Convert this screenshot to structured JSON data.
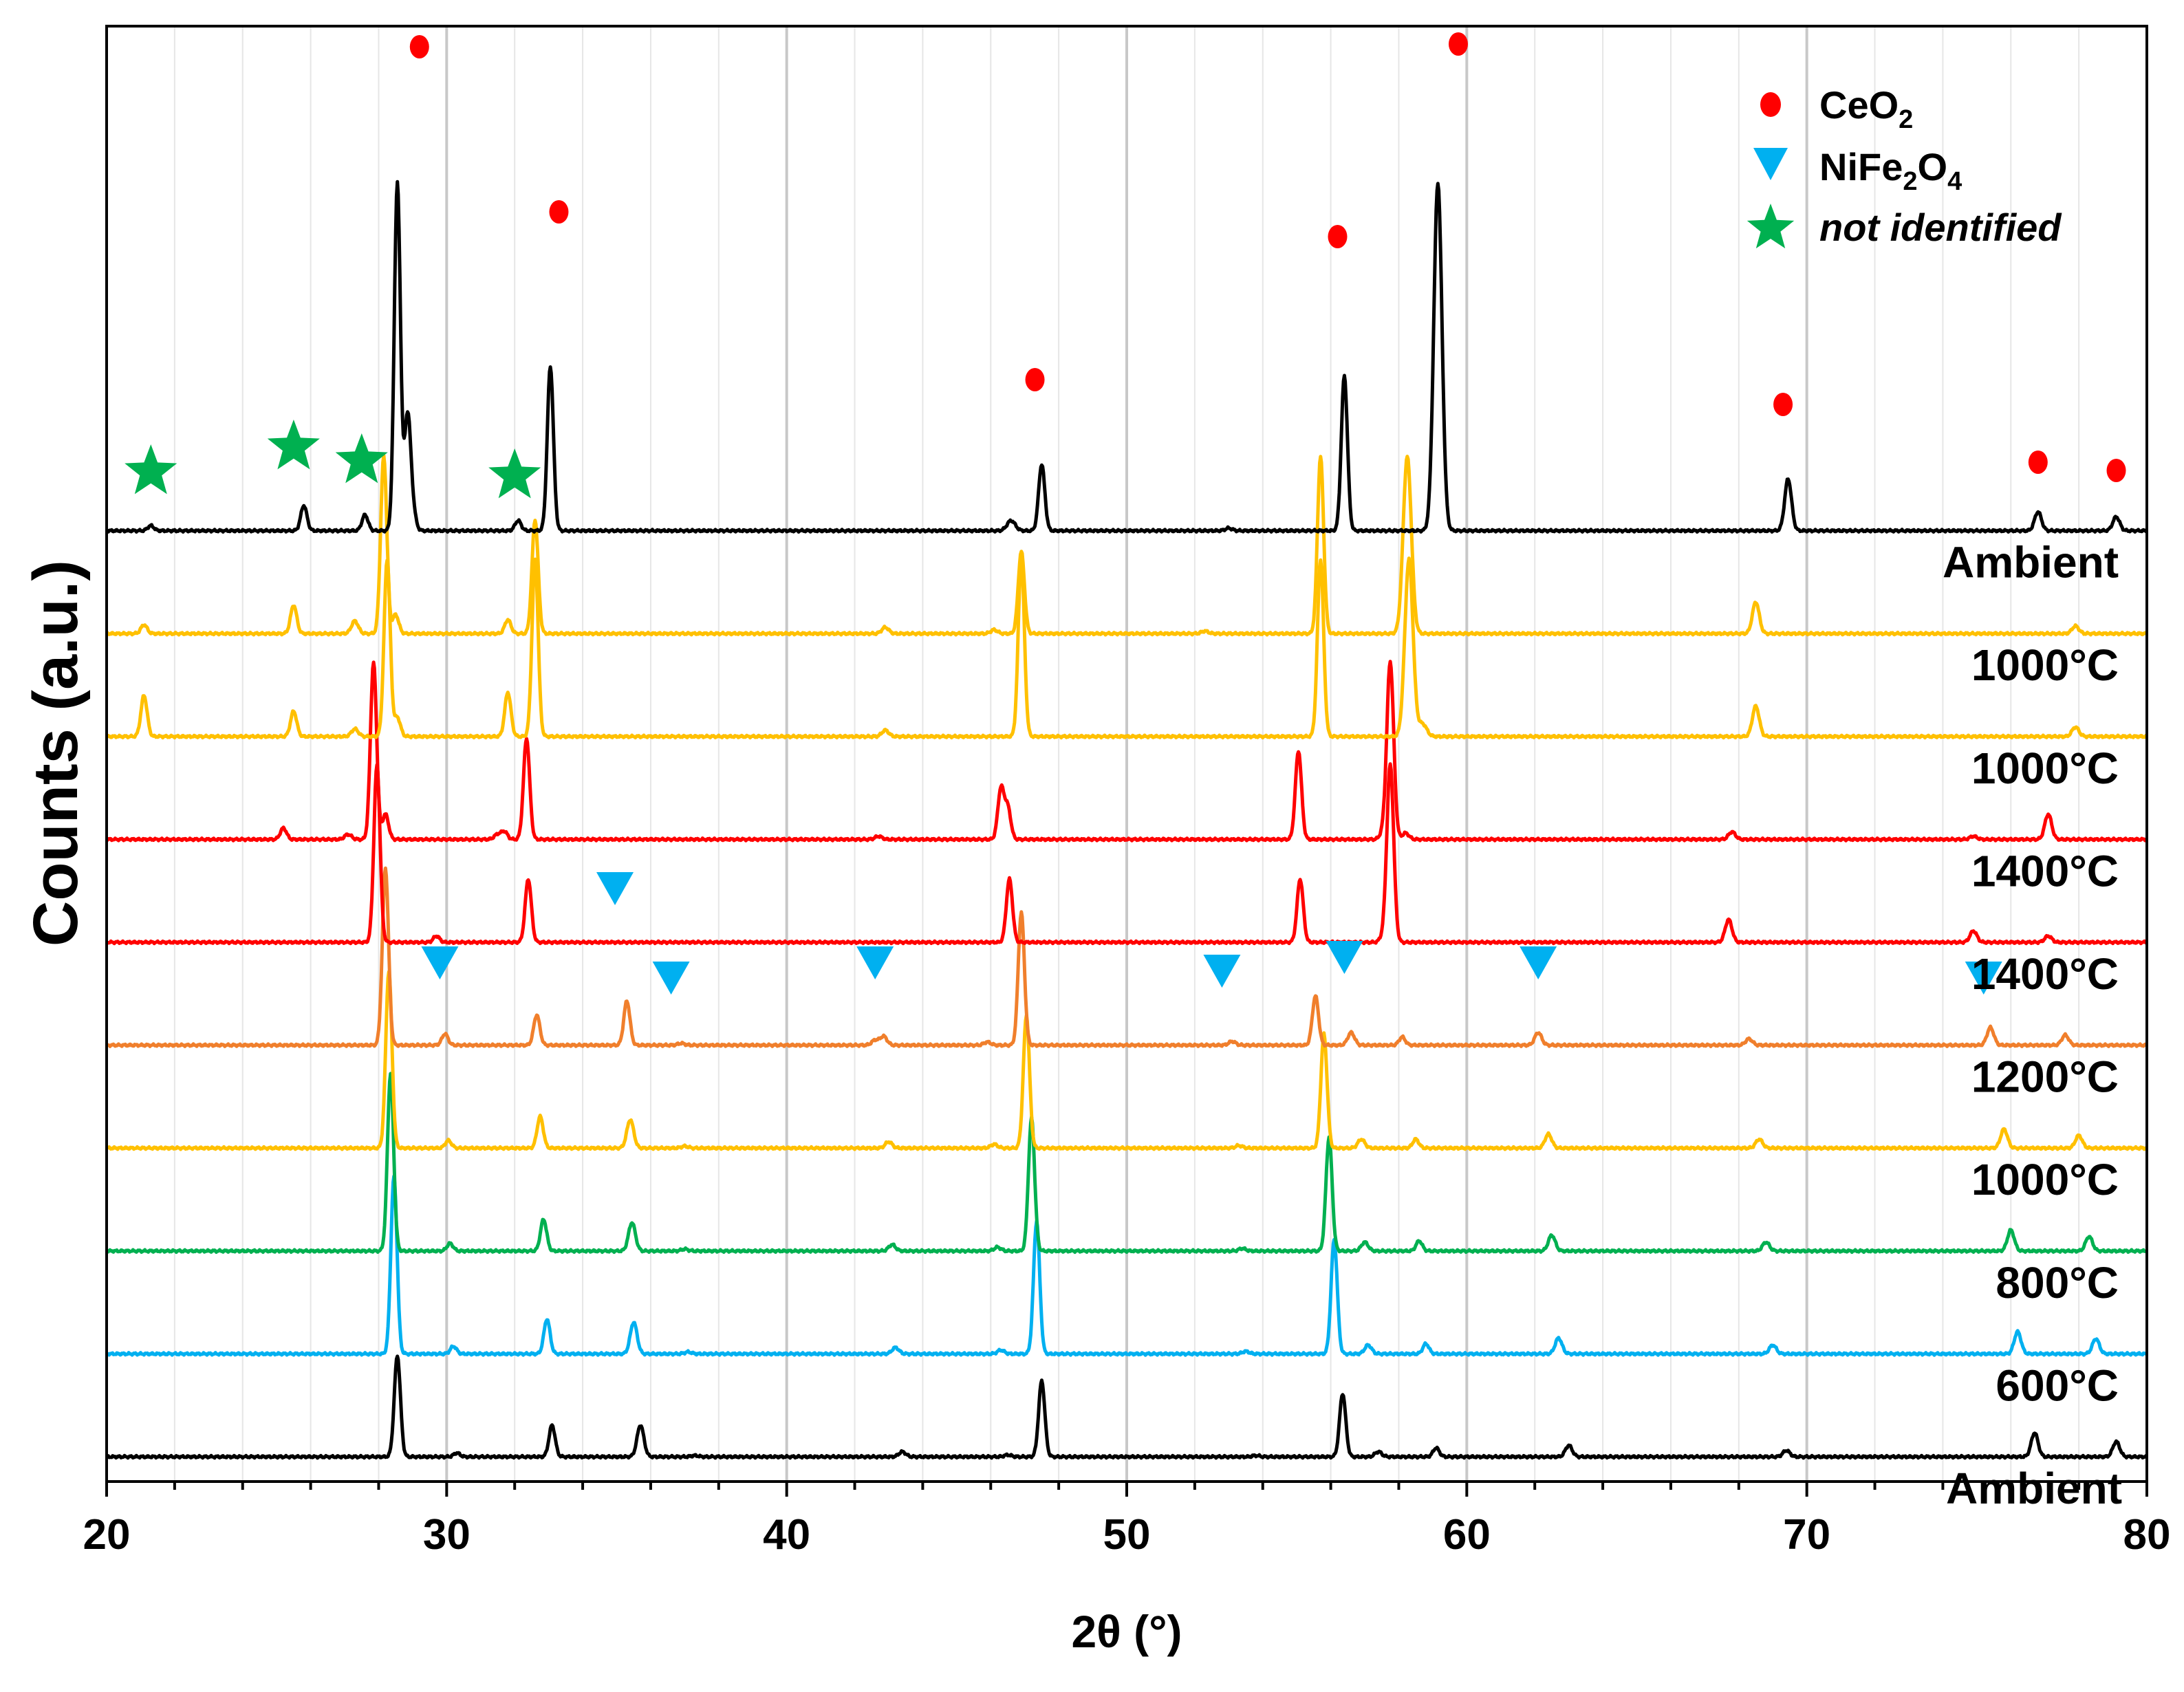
{
  "chart_data": {
    "type": "line",
    "title": "",
    "xlabel": "2θ (°)",
    "ylabel": "Counts (a.u.)",
    "xlim": [
      20,
      80
    ],
    "xticks": [
      20,
      30,
      40,
      50,
      60,
      70,
      80
    ],
    "grid": "vertical",
    "legend": {
      "position": "top-right",
      "entries": [
        {
          "marker": "circle",
          "color": "#ff0000",
          "label": "CeO",
          "sub": "2"
        },
        {
          "marker": "triangle-down",
          "color": "#00b0f0",
          "label_parts": [
            "NiFe",
            "2",
            "O",
            "4"
          ]
        },
        {
          "marker": "star",
          "color": "#00b050",
          "label": "not identified",
          "italic": true
        }
      ]
    },
    "series": [
      {
        "name": "Ambient",
        "color": "#000000",
        "base": 0.0,
        "peaks": [
          [
            28.55,
            1.6,
            0.09
          ],
          [
            30.3,
            0.06,
            0.09
          ],
          [
            33.1,
            0.5,
            0.09
          ],
          [
            35.7,
            0.5,
            0.1
          ],
          [
            37.3,
            0.02,
            0.1
          ],
          [
            43.4,
            0.08,
            0.1
          ],
          [
            46.5,
            0.03,
            0.1
          ],
          [
            47.5,
            1.2,
            0.09
          ],
          [
            53.8,
            0.02,
            0.1
          ],
          [
            56.35,
            1.0,
            0.09
          ],
          [
            57.4,
            0.08,
            0.1
          ],
          [
            59.1,
            0.14,
            0.09
          ],
          [
            63.0,
            0.18,
            0.1
          ],
          [
            69.4,
            0.1,
            0.1
          ],
          [
            76.7,
            0.38,
            0.1
          ],
          [
            79.1,
            0.24,
            0.1
          ]
        ]
      },
      {
        "name": "600°C",
        "color": "#00b0f0",
        "base": 1.0,
        "peaks": [
          [
            28.45,
            2.8,
            0.09
          ],
          [
            30.2,
            0.12,
            0.09
          ],
          [
            32.95,
            0.55,
            0.09
          ],
          [
            35.5,
            0.5,
            0.1
          ],
          [
            37.1,
            0.03,
            0.1
          ],
          [
            43.2,
            0.1,
            0.1
          ],
          [
            46.3,
            0.06,
            0.1
          ],
          [
            47.35,
            2.1,
            0.09
          ],
          [
            53.5,
            0.04,
            0.1
          ],
          [
            56.1,
            1.8,
            0.09
          ],
          [
            57.1,
            0.14,
            0.1
          ],
          [
            58.8,
            0.16,
            0.09
          ],
          [
            62.7,
            0.25,
            0.1
          ],
          [
            69.0,
            0.14,
            0.1
          ],
          [
            76.2,
            0.35,
            0.1
          ],
          [
            78.5,
            0.24,
            0.1
          ]
        ]
      },
      {
        "name": "800°C",
        "color": "#00b050",
        "base": 2.0,
        "peaks": [
          [
            28.35,
            2.8,
            0.09
          ],
          [
            30.1,
            0.12,
            0.09
          ],
          [
            32.85,
            0.5,
            0.09
          ],
          [
            35.45,
            0.45,
            0.1
          ],
          [
            37.0,
            0.03,
            0.1
          ],
          [
            43.1,
            0.1,
            0.1
          ],
          [
            46.2,
            0.06,
            0.1
          ],
          [
            47.2,
            2.1,
            0.09
          ],
          [
            53.4,
            0.04,
            0.1
          ],
          [
            55.95,
            1.8,
            0.09
          ],
          [
            57.0,
            0.14,
            0.1
          ],
          [
            58.6,
            0.16,
            0.09
          ],
          [
            62.5,
            0.25,
            0.1
          ],
          [
            68.8,
            0.14,
            0.1
          ],
          [
            76.0,
            0.33,
            0.1
          ],
          [
            78.3,
            0.23,
            0.1
          ]
        ]
      },
      {
        "name": "1000°C",
        "color": "#ffc000",
        "base": 3.0,
        "peaks": [
          [
            28.3,
            2.8,
            0.09
          ],
          [
            30.05,
            0.12,
            0.09
          ],
          [
            32.75,
            0.5,
            0.09
          ],
          [
            35.4,
            0.45,
            0.1
          ],
          [
            37.0,
            0.03,
            0.1
          ],
          [
            43.0,
            0.1,
            0.1
          ],
          [
            46.1,
            0.06,
            0.1
          ],
          [
            47.05,
            2.1,
            0.09
          ],
          [
            53.3,
            0.04,
            0.1
          ],
          [
            55.8,
            1.8,
            0.09
          ],
          [
            56.9,
            0.14,
            0.1
          ],
          [
            58.5,
            0.14,
            0.09
          ],
          [
            62.4,
            0.22,
            0.1
          ],
          [
            68.6,
            0.14,
            0.1
          ],
          [
            75.8,
            0.3,
            0.1
          ],
          [
            78.0,
            0.2,
            0.1
          ]
        ]
      },
      {
        "name": "1200°C",
        "color": "#f07f2c",
        "base": 4.0,
        "peaks": [
          [
            28.2,
            2.8,
            0.09
          ],
          [
            29.95,
            0.18,
            0.09
          ],
          [
            32.65,
            0.48,
            0.09
          ],
          [
            35.3,
            0.7,
            0.09
          ],
          [
            36.9,
            0.03,
            0.1
          ],
          [
            42.6,
            0.08,
            0.1
          ],
          [
            42.85,
            0.14,
            0.1
          ],
          [
            45.9,
            0.05,
            0.1
          ],
          [
            46.9,
            2.1,
            0.09
          ],
          [
            53.1,
            0.06,
            0.1
          ],
          [
            55.55,
            0.78,
            0.09
          ],
          [
            56.6,
            0.2,
            0.1
          ],
          [
            58.1,
            0.13,
            0.09
          ],
          [
            62.1,
            0.2,
            0.1
          ],
          [
            68.3,
            0.1,
            0.1
          ],
          [
            75.4,
            0.28,
            0.1
          ],
          [
            77.6,
            0.16,
            0.1
          ]
        ]
      },
      {
        "name": "1400°C",
        "color": "#ff0000",
        "base": 5.0,
        "peaks": [
          [
            27.95,
            2.8,
            0.09
          ],
          [
            29.7,
            0.1,
            0.09
          ],
          [
            32.4,
            1.0,
            0.09
          ],
          [
            46.55,
            1.0,
            0.09
          ],
          [
            55.1,
            1.0,
            0.09
          ],
          [
            57.55,
            0.08,
            0.1
          ],
          [
            57.75,
            2.8,
            0.1
          ],
          [
            67.7,
            0.36,
            0.1
          ],
          [
            74.9,
            0.18,
            0.1
          ],
          [
            77.1,
            0.1,
            0.1
          ]
        ]
      },
      {
        "name": "1400°C",
        "color": "#ff0000",
        "base": 6.0,
        "peaks": [
          [
            25.2,
            0.18,
            0.09
          ],
          [
            27.1,
            0.08,
            0.1
          ],
          [
            27.85,
            2.8,
            0.09
          ],
          [
            28.2,
            0.4,
            0.09
          ],
          [
            31.5,
            0.08,
            0.1
          ],
          [
            31.7,
            0.12,
            0.09
          ],
          [
            32.35,
            1.6,
            0.09
          ],
          [
            42.7,
            0.05,
            0.1
          ],
          [
            46.3,
            0.8,
            0.09
          ],
          [
            46.5,
            0.5,
            0.09
          ],
          [
            55.05,
            1.4,
            0.09
          ],
          [
            57.55,
            0.1,
            0.1
          ],
          [
            57.75,
            2.8,
            0.1
          ],
          [
            58.2,
            0.1,
            0.1
          ],
          [
            67.8,
            0.12,
            0.1
          ],
          [
            74.9,
            0.05,
            0.1
          ],
          [
            77.1,
            0.4,
            0.1
          ]
        ]
      },
      {
        "name": "1000°C",
        "color": "#ffc000",
        "base": 7.0,
        "peaks": [
          [
            21.1,
            0.65,
            0.09
          ],
          [
            25.5,
            0.4,
            0.09
          ],
          [
            27.3,
            0.12,
            0.1
          ],
          [
            28.25,
            2.8,
            0.09
          ],
          [
            28.55,
            0.3,
            0.09
          ],
          [
            31.8,
            0.7,
            0.09
          ],
          [
            32.6,
            2.8,
            0.09
          ],
          [
            42.9,
            0.1,
            0.1
          ],
          [
            46.9,
            2.8,
            0.09
          ],
          [
            55.7,
            2.8,
            0.09
          ],
          [
            58.3,
            2.8,
            0.12
          ],
          [
            58.7,
            0.2,
            0.12
          ],
          [
            68.5,
            0.48,
            0.1
          ],
          [
            77.9,
            0.15,
            0.1
          ]
        ]
      },
      {
        "name": "1000°C",
        "color": "#ffc000",
        "base": 8.0,
        "peaks": [
          [
            21.1,
            0.14,
            0.09
          ],
          [
            25.5,
            0.45,
            0.09
          ],
          [
            27.3,
            0.2,
            0.1
          ],
          [
            28.15,
            2.8,
            0.09
          ],
          [
            28.5,
            0.3,
            0.09
          ],
          [
            31.8,
            0.22,
            0.09
          ],
          [
            32.6,
            1.8,
            0.09
          ],
          [
            42.9,
            0.1,
            0.1
          ],
          [
            46.1,
            0.06,
            0.1
          ],
          [
            46.9,
            1.3,
            0.09
          ],
          [
            52.3,
            0.04,
            0.1
          ],
          [
            55.7,
            2.8,
            0.09
          ],
          [
            58.25,
            2.8,
            0.12
          ],
          [
            68.5,
            0.5,
            0.1
          ],
          [
            77.9,
            0.12,
            0.1
          ]
        ]
      },
      {
        "name": "Ambient",
        "color": "#000000",
        "base": 9.0,
        "peaks": [
          [
            21.3,
            0.08,
            0.09
          ],
          [
            25.8,
            0.4,
            0.09
          ],
          [
            27.6,
            0.25,
            0.09
          ],
          [
            28.55,
            5.5,
            0.09
          ],
          [
            28.85,
            1.8,
            0.09
          ],
          [
            29.0,
            0.3,
            0.09
          ],
          [
            32.1,
            0.16,
            0.09
          ],
          [
            33.05,
            2.6,
            0.09
          ],
          [
            46.6,
            0.16,
            0.12
          ],
          [
            47.5,
            1.05,
            0.09
          ],
          [
            53.0,
            0.04,
            0.1
          ],
          [
            56.4,
            2.45,
            0.09
          ],
          [
            59.15,
            5.5,
            0.12
          ],
          [
            69.45,
            0.82,
            0.1
          ],
          [
            76.8,
            0.3,
            0.1
          ],
          [
            79.1,
            0.22,
            0.1
          ]
        ]
      }
    ],
    "annotations": {
      "ceo2": [
        29.2,
        33.3,
        47.3,
        56.2,
        59.75,
        69.3,
        76.8,
        79.1
      ],
      "nife2o4": [
        29.8,
        34.95,
        36.6,
        42.6,
        52.8,
        56.4,
        62.1,
        75.2
      ],
      "not_identified": [
        21.3,
        25.5,
        27.5,
        32.0
      ]
    }
  }
}
